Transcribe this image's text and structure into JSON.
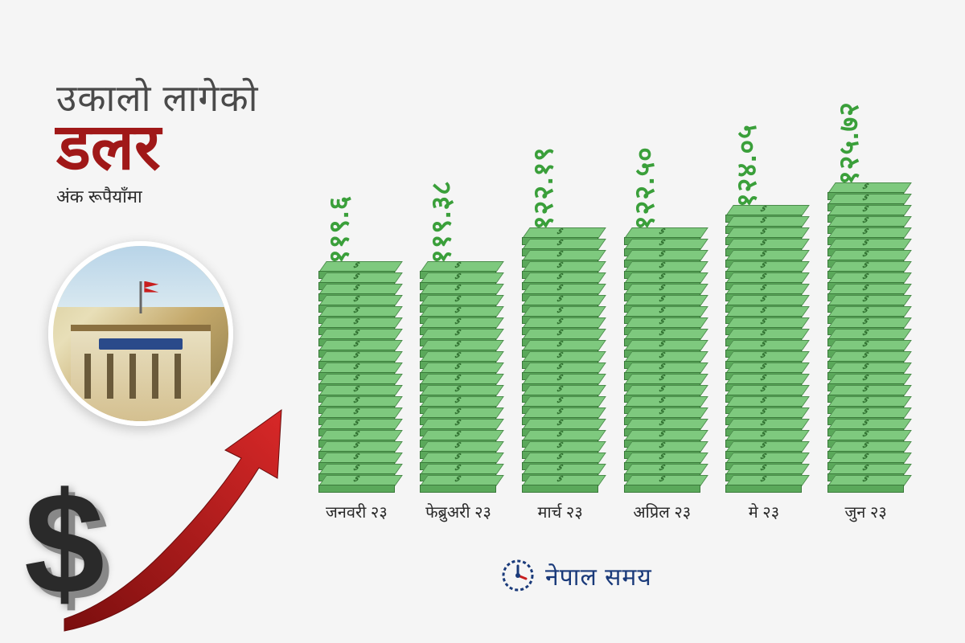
{
  "title": {
    "line1": "उकालो लागेको",
    "line2": "डलर",
    "subtitle": "अंक रूपैयाँमा",
    "line1_color": "#4a4a4a",
    "line2_color": "#a01818",
    "line1_fontsize": 46,
    "line2_fontsize": 80
  },
  "chart": {
    "type": "bar",
    "value_color": "#3a9f3a",
    "value_fontsize": 34,
    "label_color": "#2a2a2a",
    "label_fontsize": 20,
    "bill_colors": {
      "top": "#7ec97e",
      "front": "#5aa85a",
      "side": "#4a9a4a",
      "border": "#3a7a3a"
    },
    "min_value": 118,
    "max_value": 126,
    "base_bills": 18,
    "bills_per_unit": 1.2,
    "bars": [
      {
        "label": "जनवरी २३",
        "value_text": "११९.६",
        "value": 119.6
      },
      {
        "label": "फेब्रुअरी २३",
        "value_text": "११९.३८",
        "value": 119.38
      },
      {
        "label": "मार्च २३",
        "value_text": "१२२.१९",
        "value": 122.19
      },
      {
        "label": "अप्रिल २३",
        "value_text": "१२२.५०",
        "value": 122.5
      },
      {
        "label": "मे २३",
        "value_text": "१२४.०५",
        "value": 124.05
      },
      {
        "label": "जुन २३",
        "value_text": "१२५.७२",
        "value": 125.72
      }
    ]
  },
  "accents": {
    "arrow_color": "#b01818",
    "dollar_color": "#2a2a2a",
    "background": "#f5f5f5"
  },
  "logo": {
    "text": "नेपाल समय",
    "color": "#1a3a7a",
    "accent_color": "#c81e1e"
  }
}
